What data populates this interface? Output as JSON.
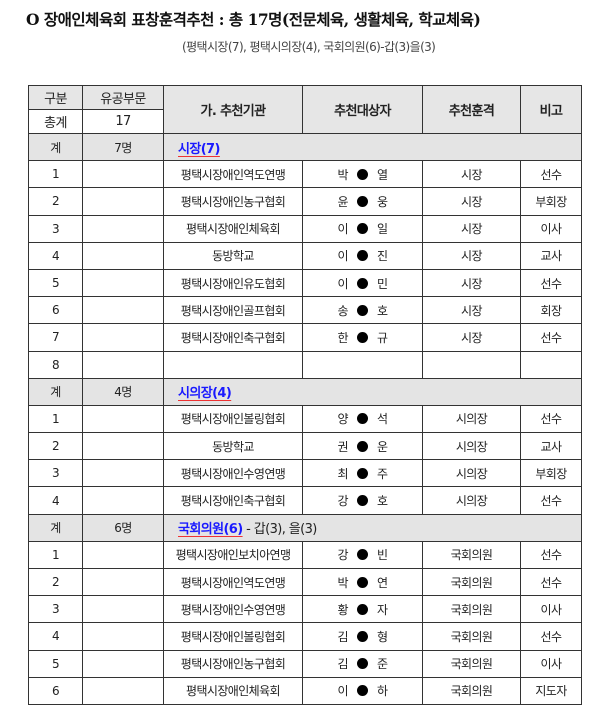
{
  "title": "O 장애인체육회 표창훈격추천 : 총 17명(전문체육, 생활체육, 학교체육)",
  "subtitle": "(평택시장(7), 평택시의장(4), 국회의원(6)-갑(3)을(3)",
  "header": {
    "gubun": "구분",
    "yugong": "유공부문",
    "org": "가. 추천기관",
    "target": "추천대상자",
    "award": "추천훈격",
    "note": "비고",
    "total_label": "총계",
    "total_value": "17"
  },
  "sections": [
    {
      "label": "계",
      "count": "7명",
      "name": "시장(7)",
      "extra": "",
      "rows": [
        {
          "no": "1",
          "org": "평택시장애인역도연맹",
          "first": "박",
          "last": "열",
          "award": "시장",
          "note": "선수"
        },
        {
          "no": "2",
          "org": "평택시장애인농구협회",
          "first": "윤",
          "last": "웅",
          "award": "시장",
          "note": "부회장"
        },
        {
          "no": "3",
          "org": "평택시장애인체육회",
          "first": "이",
          "last": "일",
          "award": "시장",
          "note": "이사"
        },
        {
          "no": "4",
          "org": "동방학교",
          "first": "이",
          "last": "진",
          "award": "시장",
          "note": "교사"
        },
        {
          "no": "5",
          "org": "평택시장애인유도협회",
          "first": "이",
          "last": "민",
          "award": "시장",
          "note": "선수"
        },
        {
          "no": "6",
          "org": "평택시장애인골프협회",
          "first": "송",
          "last": "호",
          "award": "시장",
          "note": "회장"
        },
        {
          "no": "7",
          "org": "평택시장애인축구협회",
          "first": "한",
          "last": "규",
          "award": "시장",
          "note": "선수"
        },
        {
          "no": "8",
          "org": "",
          "first": "",
          "last": "",
          "award": "",
          "note": ""
        }
      ]
    },
    {
      "label": "계",
      "count": "4명",
      "name": "시의장(4)",
      "extra": "",
      "rows": [
        {
          "no": "1",
          "org": "평택시장애인볼링협회",
          "first": "양",
          "last": "석",
          "award": "시의장",
          "note": "선수"
        },
        {
          "no": "2",
          "org": "동방학교",
          "first": "권",
          "last": "운",
          "award": "시의장",
          "note": "교사"
        },
        {
          "no": "3",
          "org": "평택시장애인수영연맹",
          "first": "최",
          "last": "주",
          "award": "시의장",
          "note": "부회장"
        },
        {
          "no": "4",
          "org": "평택시장애인축구협회",
          "first": "강",
          "last": "호",
          "award": "시의장",
          "note": "선수"
        }
      ]
    },
    {
      "label": "계",
      "count": "6명",
      "name": "국회의원(6)",
      "extra": " - 갑(3),  을(3)",
      "rows": [
        {
          "no": "1",
          "org": "평택시장애인보치아연맹",
          "first": "강",
          "last": "빈",
          "award": "국회의원",
          "note": "선수"
        },
        {
          "no": "2",
          "org": "평택시장애인역도연맹",
          "first": "박",
          "last": "연",
          "award": "국회의원",
          "note": "선수"
        },
        {
          "no": "3",
          "org": "평택시장애인수영연맹",
          "first": "황",
          "last": "자",
          "award": "국회의원",
          "note": "이사"
        },
        {
          "no": "4",
          "org": "평택시장애인볼링협회",
          "first": "김",
          "last": "형",
          "award": "국회의원",
          "note": "선수"
        },
        {
          "no": "5",
          "org": "평택시장애인농구협회",
          "first": "김",
          "last": "준",
          "award": "국회의원",
          "note": "이사"
        },
        {
          "no": "6",
          "org": "평택시장애인체육회",
          "first": "이",
          "last": "하",
          "award": "국회의원",
          "note": "지도자"
        }
      ]
    }
  ]
}
